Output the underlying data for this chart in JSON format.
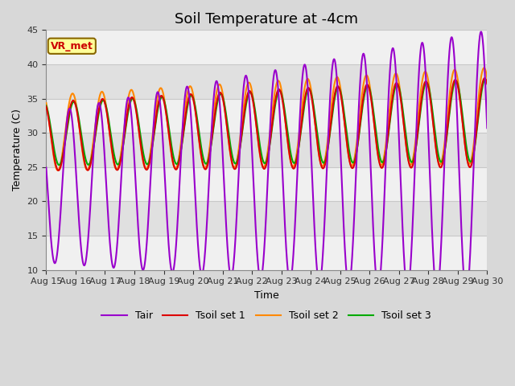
{
  "title": "Soil Temperature at -4cm",
  "xlabel": "Time",
  "ylabel": "Temperature (C)",
  "ylim": [
    10,
    45
  ],
  "xlim": [
    0,
    15
  ],
  "xtick_labels": [
    "Aug 15",
    "Aug 16",
    "Aug 17",
    "Aug 18",
    "Aug 19",
    "Aug 20",
    "Aug 21",
    "Aug 22",
    "Aug 23",
    "Aug 24",
    "Aug 25",
    "Aug 26",
    "Aug 27",
    "Aug 28",
    "Aug 29",
    "Aug 30"
  ],
  "line_colors": {
    "Tair": "#9900cc",
    "Tsoil1": "#dd0000",
    "Tsoil2": "#ff8800",
    "Tsoil3": "#00aa00"
  },
  "vr_met_label": "VR_met",
  "vr_met_color": "#cc0000",
  "vr_met_bg": "#ffff99",
  "background_color": "#e0e0e0",
  "band_color": "#f0f0f0",
  "grid_color": "#c8c8c8",
  "title_fontsize": 13,
  "label_fontsize": 9,
  "tick_fontsize": 8,
  "legend_fontsize": 9
}
